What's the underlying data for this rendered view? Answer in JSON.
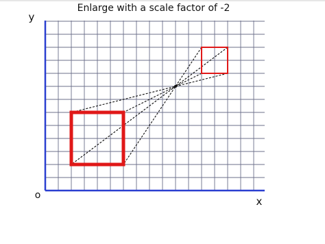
{
  "title": "Enlarge with a scale factor of -2",
  "axes": {
    "x": "x",
    "y": "y",
    "origin": "o"
  }
}
